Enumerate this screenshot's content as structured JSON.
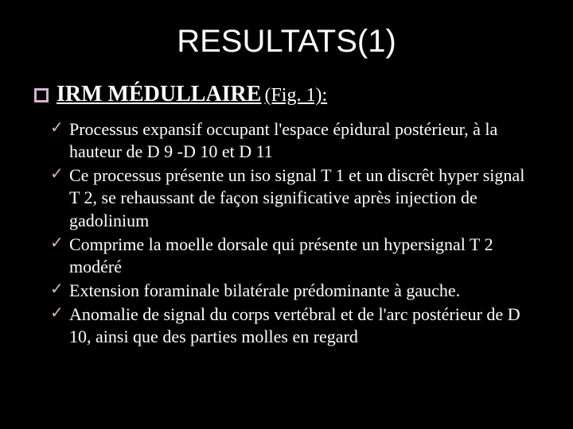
{
  "title": "RESULTATS(1)",
  "subtitle": {
    "main": "IRM MÉDULLAIRE",
    "fig": "(Fig. 1):"
  },
  "bullets": [
    "Processus expansif occupant l'espace épidural postérieur, à la hauteur de D 9 -D 10 et D 11",
    "Ce processus présente un iso signal T 1 et un discrêt hyper signal T 2, se rehaussant de façon significative après injection de gadolinium",
    "Comprime la moelle dorsale qui présente un hypersignal T 2 modéré",
    "Extension foraminale bilatérale prédominante à gauche.",
    "Anomalie de signal du corps vertébral et de l'arc postérieur de D 10, ainsi que des parties molles en regard"
  ],
  "colors": {
    "background": "#000000",
    "text": "#ffffff",
    "accent": "#dab0d4"
  }
}
